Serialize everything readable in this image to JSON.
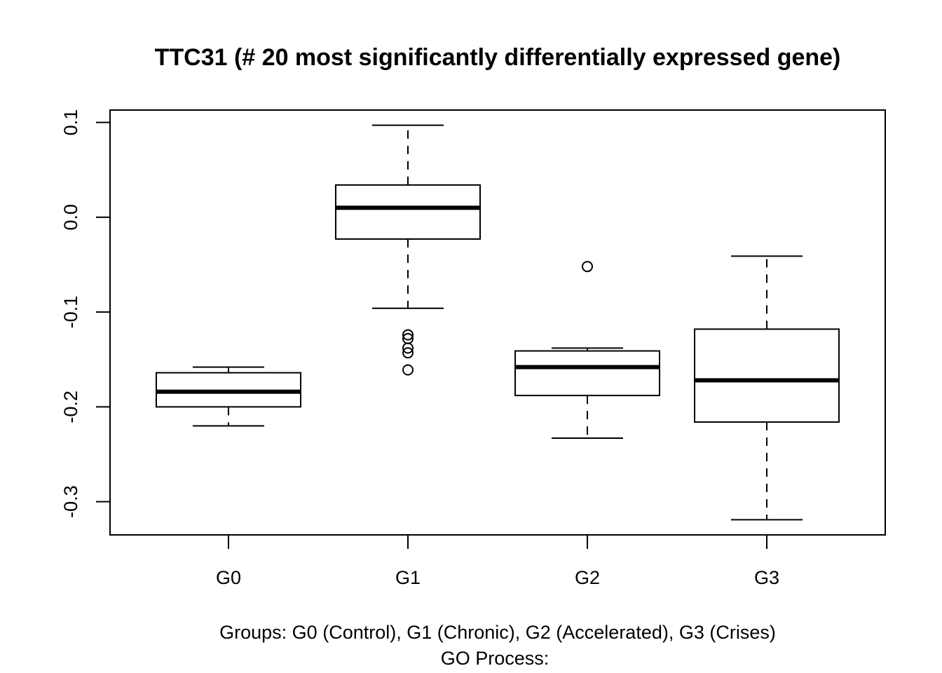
{
  "chart_data": {
    "type": "box",
    "title": "TTC31  (# 20  most significantly differentially expressed gene)",
    "xlabel": "Groups: G0 (Control), G1 (Chronic), G2 (Accelerated), G3 (Crises)",
    "sublabel": "GO Process:",
    "ylabel": "",
    "ylim": [
      -0.335,
      0.113
    ],
    "yticks": [
      0.1,
      0.0,
      -0.1,
      -0.2,
      -0.3
    ],
    "ytick_labels": [
      "0.1",
      "0.0",
      "-0.1",
      "-0.2",
      "-0.3"
    ],
    "categories": [
      "G0",
      "G1",
      "G2",
      "G3"
    ],
    "boxes": [
      {
        "name": "G0",
        "whisker_low": -0.22,
        "q1": -0.2,
        "median": -0.184,
        "q3": -0.164,
        "whisker_high": -0.158,
        "outliers": []
      },
      {
        "name": "G1",
        "whisker_low": -0.096,
        "q1": -0.023,
        "median": 0.01,
        "q3": 0.034,
        "whisker_high": 0.097,
        "outliers": [
          -0.124,
          -0.128,
          -0.138,
          -0.143,
          -0.161
        ]
      },
      {
        "name": "G2",
        "whisker_low": -0.233,
        "q1": -0.188,
        "median": -0.158,
        "q3": -0.141,
        "whisker_high": -0.138,
        "outliers": [
          -0.052
        ]
      },
      {
        "name": "G3",
        "whisker_low": -0.319,
        "q1": -0.216,
        "median": -0.172,
        "q3": -0.118,
        "whisker_high": -0.041,
        "outliers": []
      }
    ],
    "grid": false,
    "legend": "none"
  }
}
